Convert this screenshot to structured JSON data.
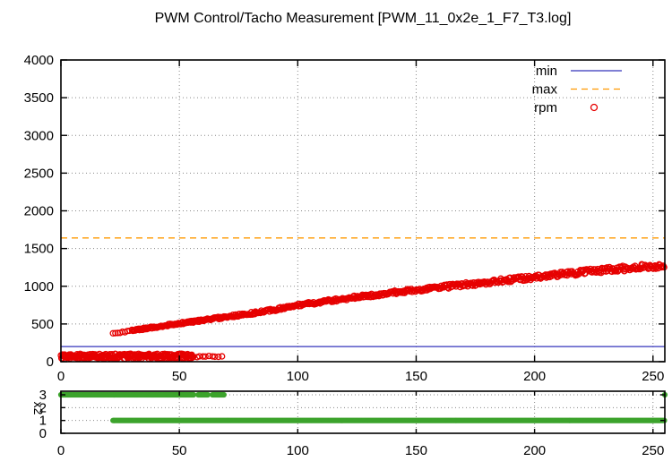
{
  "title": "PWM Control/Tacho Measurement [PWM_11_0x2e_1_F7_T3.log]",
  "colors": {
    "rpm": "#e60000",
    "min": "#3333bb",
    "max": "#ff9900",
    "flags": "#3ca32c",
    "grid": "#888888",
    "axis": "#000000",
    "background": "#ffffff"
  },
  "legend": {
    "position": "top-right-inside",
    "entries": [
      {
        "label": "min",
        "sample": "solid-line",
        "color": "#3333bb"
      },
      {
        "label": "max",
        "sample": "dashed-line",
        "color": "#ff9900"
      },
      {
        "label": "rpm",
        "sample": "open-circle",
        "color": "#e60000"
      }
    ]
  },
  "chart_data": [
    {
      "name": "main-plot",
      "type": "scatter",
      "title": "PWM Control/Tacho Measurement [PWM_11_0x2e_1_F7_T3.log]",
      "xlabel": "",
      "ylabel": "",
      "xlim": [
        0,
        255
      ],
      "ylim": [
        0,
        4000
      ],
      "xticks": [
        0,
        50,
        100,
        150,
        200,
        250
      ],
      "yticks": [
        0,
        500,
        1000,
        1500,
        2000,
        2500,
        3000,
        3500,
        4000
      ],
      "grid": "dotted",
      "series": [
        {
          "name": "min",
          "type": "hline",
          "style": "solid",
          "y": 200
        },
        {
          "name": "max",
          "type": "hline",
          "style": "dashed",
          "y": 1640
        },
        {
          "name": "rpm",
          "type": "scatter-open-circles",
          "marker_radius": 3,
          "curve_keypoints": [
            [
              22,
              370
            ],
            [
              26,
              392
            ],
            [
              30,
              412
            ],
            [
              35,
              436
            ],
            [
              40,
              460
            ],
            [
              45,
              483
            ],
            [
              50,
              505
            ],
            [
              55,
              528
            ],
            [
              60,
              550
            ],
            [
              65,
              572
            ],
            [
              70,
              594
            ],
            [
              75,
              616
            ],
            [
              80,
              638
            ],
            [
              85,
              662
            ],
            [
              90,
              688
            ],
            [
              95,
              718
            ],
            [
              100,
              750
            ],
            [
              107,
              780
            ],
            [
              115,
              815
            ],
            [
              122,
              845
            ],
            [
              130,
              875
            ],
            [
              140,
              915
            ],
            [
              150,
              950
            ],
            [
              160,
              985
            ],
            [
              170,
              1018
            ],
            [
              180,
              1052
            ],
            [
              190,
              1088
            ],
            [
              200,
              1120
            ],
            [
              210,
              1152
            ],
            [
              220,
              1185
            ],
            [
              230,
              1215
            ],
            [
              240,
              1242
            ],
            [
              255,
              1280
            ]
          ],
          "curve_x_range": [
            22,
            255
          ],
          "curve_jitter_rpm": {
            "base": 8,
            "per_pwm": 0.12
          },
          "stall_band": {
            "x_dense_range": [
              0,
              56
            ],
            "rpm_range": [
              35,
              105
            ],
            "sparse_x": [
              57.5,
              58.5,
              60,
              61,
              62.5,
              64,
              65,
              66.5,
              68
            ],
            "sparse_rpm_center": 70,
            "sparse_rpm_spread": 20
          }
        }
      ]
    },
    {
      "name": "flag-subplot",
      "type": "scatter",
      "xlabel": "",
      "ylabel": "x2",
      "xlim": [
        0,
        255
      ],
      "ylim": [
        0,
        3
      ],
      "xticks": [
        0,
        50,
        100,
        150,
        200,
        250
      ],
      "yticks": [
        0,
        1,
        2,
        3
      ],
      "grid": "dotted",
      "series": [
        {
          "name": "flag-level-3",
          "y": 3,
          "marker": "filled-circle",
          "x_dense_segments": [
            [
              0,
              56
            ],
            [
              58,
              62
            ],
            [
              64,
              69
            ]
          ],
          "x_single_points": [
            255
          ]
        },
        {
          "name": "flag-level-1",
          "y": 1,
          "marker": "filled-circle",
          "x_dense_segments": [
            [
              22,
              255
            ]
          ],
          "x_single_points": []
        }
      ]
    }
  ]
}
